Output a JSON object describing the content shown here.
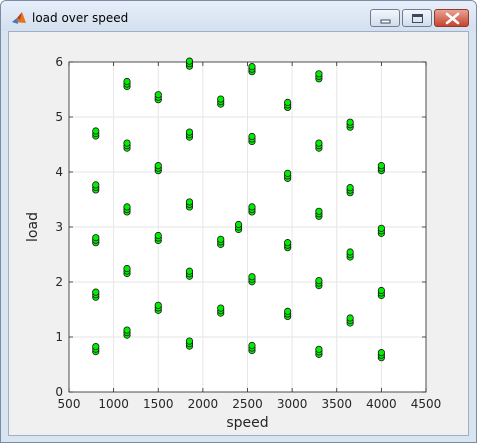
{
  "window": {
    "title": "load over speed",
    "icon": "matlab-figure-icon",
    "controls": [
      "minimize-icon",
      "maximize-icon",
      "close-icon"
    ]
  },
  "colors": {
    "marker_fill": "#00ee00",
    "marker_edge": "#1a1a1a",
    "grid": "#e6e6e6",
    "axes": "#262626",
    "figure_bg": "#f0f0f0"
  },
  "chart_data": {
    "type": "scatter",
    "title": "",
    "xlabel": "speed",
    "ylabel": "load",
    "xlim": [
      500,
      4500
    ],
    "ylim": [
      0,
      6
    ],
    "xticks": [
      500,
      1000,
      1500,
      2000,
      2500,
      3000,
      3500,
      4000,
      4500
    ],
    "yticks": [
      0,
      1,
      2,
      3,
      4,
      5,
      6
    ],
    "grid": true,
    "marker": "circle",
    "series": [
      {
        "points": [
          [
            800,
            0.78
          ],
          [
            800,
            1.77
          ],
          [
            800,
            2.76
          ],
          [
            800,
            3.72
          ],
          [
            800,
            4.7
          ],
          [
            1150,
            1.08
          ],
          [
            1150,
            2.2
          ],
          [
            1150,
            3.32
          ],
          [
            1150,
            4.48
          ],
          [
            1150,
            5.6
          ],
          [
            1500,
            1.53
          ],
          [
            1500,
            2.8
          ],
          [
            1500,
            4.07
          ],
          [
            1500,
            5.36
          ],
          [
            1850,
            0.88
          ],
          [
            1850,
            2.15
          ],
          [
            1850,
            3.41
          ],
          [
            1850,
            4.68
          ],
          [
            1850,
            5.97
          ],
          [
            2200,
            1.48
          ],
          [
            2200,
            2.73
          ],
          [
            2200,
            5.28
          ],
          [
            2400,
            3.0
          ],
          [
            2550,
            0.8
          ],
          [
            2550,
            2.05
          ],
          [
            2550,
            3.32
          ],
          [
            2550,
            4.6
          ],
          [
            2550,
            5.87
          ],
          [
            2950,
            1.42
          ],
          [
            2950,
            2.67
          ],
          [
            2950,
            3.93
          ],
          [
            2950,
            5.22
          ],
          [
            3300,
            0.73
          ],
          [
            3300,
            1.98
          ],
          [
            3300,
            3.24
          ],
          [
            3300,
            4.48
          ],
          [
            3300,
            5.74
          ],
          [
            3650,
            1.3
          ],
          [
            3650,
            2.5
          ],
          [
            3650,
            3.67
          ],
          [
            3650,
            4.86
          ],
          [
            4000,
            0.67
          ],
          [
            4000,
            1.8
          ],
          [
            4000,
            2.93
          ],
          [
            4000,
            4.07
          ]
        ]
      }
    ]
  }
}
